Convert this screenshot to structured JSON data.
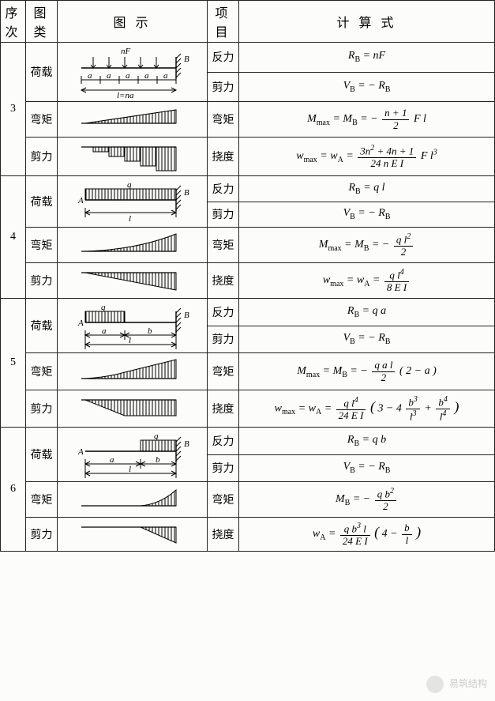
{
  "headers": {
    "seq": "序次",
    "type": "图类",
    "diagram": "图    示",
    "item": "项目",
    "formula": "计    算    式"
  },
  "labels": {
    "load": "荷载",
    "moment": "弯矩",
    "shear": "剪力",
    "reaction": "反力",
    "deflection": "挠度"
  },
  "diagram_letters": {
    "A": "A",
    "B": "B",
    "q": "q",
    "l": "l",
    "a": "a",
    "b": "b",
    "nF": "nF",
    "lna": "l=na"
  },
  "formulas": {
    "r3_reaction": "R<sub>B</sub> = nF",
    "r3_shear": "V<sub>B</sub> = − R<sub>B</sub>",
    "r3_moment": "M<sub>max</sub> = M<sub>B</sub> = − <span class='frac'><span class='num'>n + 1</span><span class='den'>2</span></span> F l",
    "r3_defl": "w<sub>max</sub> = w<sub>A</sub> = <span class='frac'><span class='num'>3n<sup>2</sup> + 4n + 1</span><span class='den'>24 n E I</span></span> F l<sup>3</sup>",
    "r4_reaction": "R<sub>B</sub> = q l",
    "r4_shear": "V<sub>B</sub> = − R<sub>B</sub>",
    "r4_moment": "M<sub>max</sub> = M<sub>B</sub> = − <span class='frac'><span class='num'>q l<sup>2</sup></span><span class='den'>2</span></span>",
    "r4_defl": "w<sub>max</sub> = w<sub>A</sub> = <span class='frac'><span class='num'>q l<sup>4</sup></span><span class='den'>8 E I</span></span>",
    "r5_reaction": "R<sub>B</sub> = q a",
    "r5_shear": "V<sub>B</sub> = − R<sub>B</sub>",
    "r5_moment": "M<sub>max</sub> = M<sub>B</sub> = − <span class='frac'><span class='num'>q a l</span><span class='den'>2</span></span> ( 2 − a )",
    "r5_defl": "w<sub>max</sub> = w<sub>A</sub> = <span class='frac'><span class='num'>q l<sup>4</sup></span><span class='den'>24 E I</span></span> <span style='font-size:18px'>(</span> 3 − 4 <span class='frac'><span class='num'>b<sup>3</sup></span><span class='den'>l<sup>3</sup></span></span> + <span class='frac'><span class='num'>b<sup>4</sup></span><span class='den'>l<sup>4</sup></span></span> <span style='font-size:18px'>)</span>",
    "r6_reaction": "R<sub>B</sub> = q b",
    "r6_shear": "V<sub>B</sub> = − R<sub>B</sub>",
    "r6_moment": "M<sub>B</sub> = − <span class='frac'><span class='num'>q b<sup>2</sup></span><span class='den'>2</span></span>",
    "r6_defl": "w<sub>A</sub> = <span class='frac'><span class='num'>q b<sup>3</sup> l</span><span class='den'>24 E I</span></span> <span style='font-size:18px'>(</span> 4 − <span class='frac'><span class='num'>b</span><span class='den'>l</span></span> <span style='font-size:18px'>)</span>"
  },
  "rows": [
    {
      "seq": "3"
    },
    {
      "seq": "4"
    },
    {
      "seq": "5"
    },
    {
      "seq": "6"
    }
  ],
  "style": {
    "stroke": "#000000",
    "hatch_stroke": "#000000",
    "row_height_small": 50,
    "diag_width": 170,
    "font_size": 14
  },
  "watermark": "易筑结构"
}
